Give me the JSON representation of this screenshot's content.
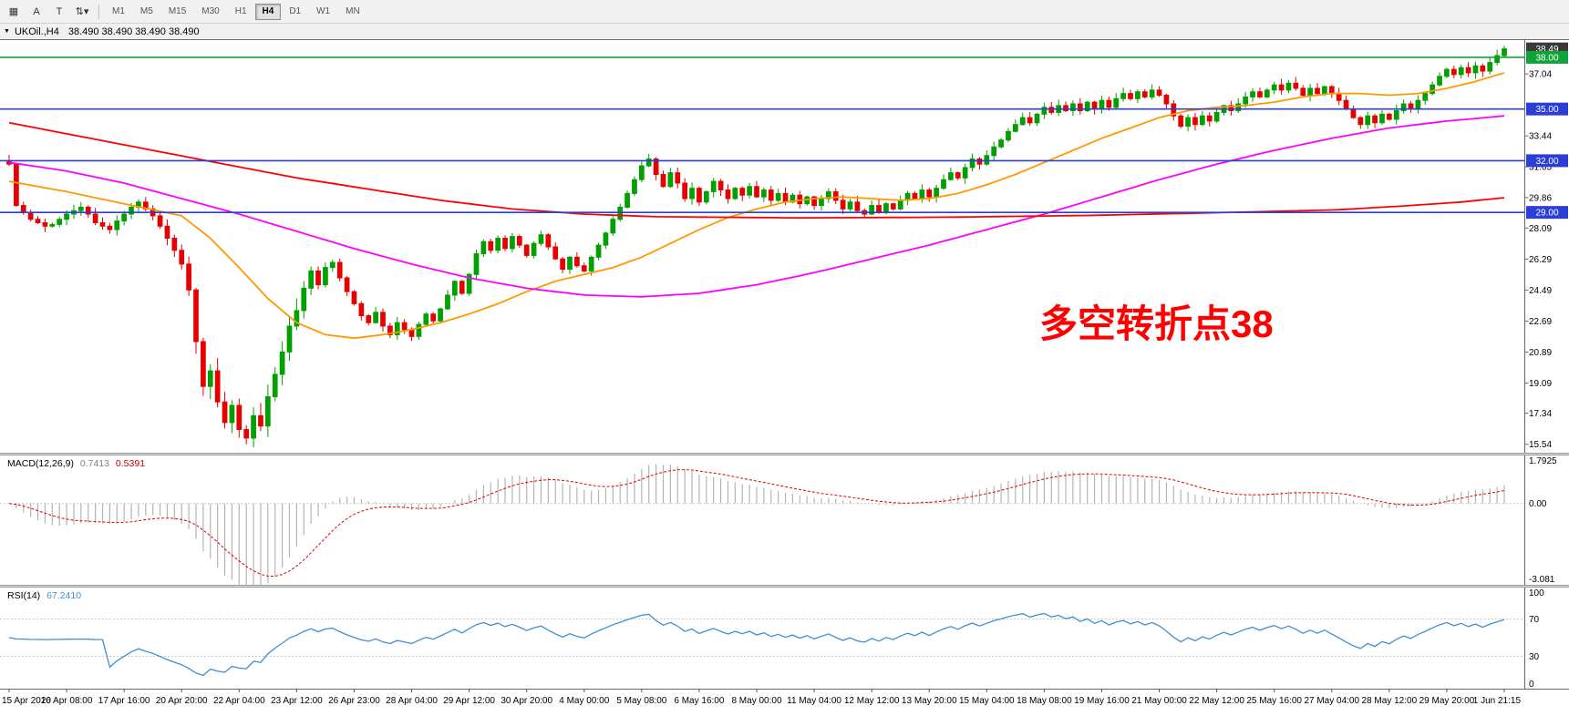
{
  "window": {
    "toolbar": {
      "icon_buttons": [
        {
          "name": "chart-grid-icon",
          "glyph": "▦"
        },
        {
          "name": "cursor-a-icon",
          "glyph": "A"
        },
        {
          "name": "text-tool-icon",
          "glyph": "T"
        },
        {
          "name": "arrows-tool-dropdown-icon",
          "glyph": "⇅▾"
        }
      ],
      "timeframes": [
        "M1",
        "M5",
        "M15",
        "M30",
        "H1",
        "H4",
        "D1",
        "W1",
        "MN"
      ],
      "active_timeframe": "H4"
    },
    "symbol_bar": {
      "collapse_glyph": "▼",
      "title": "UKOil.,H4",
      "ohlc": "38.490 38.490 38.490 38.490"
    }
  },
  "chart": {
    "annotation": {
      "text": "多空转折点38",
      "color": "#ff0000"
    },
    "colors": {
      "up": "#00a000",
      "down": "#e60000",
      "ma_fast": "#ff9900",
      "ma_mid": "#ff00ff",
      "ma_slow": "#ff0000",
      "hline_blue": "#2b3fd6",
      "hline_green": "#12a23a",
      "price_badge_bg": "#3a3a3a",
      "macd_hist": "#b4b4b4",
      "macd_signal": "#e00000",
      "rsi_line": "#3f8fd2"
    },
    "y_axis": {
      "range": [
        15.05,
        39.0
      ],
      "ticks": [
        "37.04",
        "33.44",
        "31.65",
        "29.86",
        "28.09",
        "26.29",
        "24.49",
        "22.69",
        "20.89",
        "19.09",
        "17.34",
        "15.54"
      ],
      "badges": [
        {
          "label": "38.49",
          "price": 38.49,
          "type": "current-price"
        },
        {
          "label": "38.00",
          "price": 38.0,
          "type": "green-line"
        },
        {
          "label": "35.00",
          "price": 35.0,
          "type": "blue-line"
        },
        {
          "label": "32.00",
          "price": 32.0,
          "type": "blue-line"
        },
        {
          "label": "29.00",
          "price": 29.0,
          "type": "blue-line"
        }
      ]
    },
    "h_lines": [
      {
        "price": 38.0,
        "color_key": "hline_green"
      },
      {
        "price": 35.0,
        "color_key": "hline_blue"
      },
      {
        "price": 32.0,
        "color_key": "hline_blue"
      },
      {
        "price": 29.0,
        "color_key": "hline_blue"
      }
    ],
    "x_axis": {
      "labels": [
        {
          "bar": 0,
          "label": "15 Apr 2020"
        },
        {
          "bar": 8,
          "label": "16 Apr 08:00"
        },
        {
          "bar": 16,
          "label": "17 Apr 16:00"
        },
        {
          "bar": 24,
          "label": "20 Apr 20:00"
        },
        {
          "bar": 32,
          "label": "22 Apr 04:00"
        },
        {
          "bar": 40,
          "label": "23 Apr 12:00"
        },
        {
          "bar": 48,
          "label": "26 Apr 23:00"
        },
        {
          "bar": 56,
          "label": "28 Apr 04:00"
        },
        {
          "bar": 64,
          "label": "29 Apr 12:00"
        },
        {
          "bar": 72,
          "label": "30 Apr 20:00"
        },
        {
          "bar": 80,
          "label": "4 May 00:00"
        },
        {
          "bar": 88,
          "label": "5 May 08:00"
        },
        {
          "bar": 96,
          "label": "6 May 16:00"
        },
        {
          "bar": 104,
          "label": "8 May 00:00"
        },
        {
          "bar": 112,
          "label": "11 May 04:00"
        },
        {
          "bar": 120,
          "label": "12 May 12:00"
        },
        {
          "bar": 128,
          "label": "13 May 20:00"
        },
        {
          "bar": 136,
          "label": "15 May 04:00"
        },
        {
          "bar": 144,
          "label": "18 May 08:00"
        },
        {
          "bar": 152,
          "label": "19 May 16:00"
        },
        {
          "bar": 160,
          "label": "21 May 00:00"
        },
        {
          "bar": 168,
          "label": "22 May 12:00"
        },
        {
          "bar": 176,
          "label": "25 May 16:00"
        },
        {
          "bar": 184,
          "label": "27 May 04:00"
        },
        {
          "bar": 192,
          "label": "28 May 12:00"
        },
        {
          "bar": 200,
          "label": "29 May 20:00"
        },
        {
          "bar": 208,
          "label": "1 Jun 21:15"
        }
      ]
    },
    "chart_data": {
      "type": "candlestick",
      "symbol": "UKOil",
      "timeframe": "H4",
      "bars": 209,
      "open_first": 32.0,
      "session_low": 15.54,
      "last_price": 38.49,
      "closes": [
        31.8,
        29.4,
        29.0,
        28.6,
        28.4,
        28.2,
        28.3,
        28.6,
        28.9,
        29.1,
        29.3,
        28.9,
        28.4,
        28.2,
        28.0,
        28.5,
        28.9,
        29.3,
        29.6,
        29.2,
        28.8,
        28.2,
        27.5,
        26.8,
        26.0,
        24.5,
        21.5,
        18.9,
        19.8,
        18.0,
        16.8,
        17.8,
        16.4,
        15.9,
        17.2,
        16.6,
        18.3,
        19.6,
        20.9,
        22.4,
        23.3,
        24.6,
        25.6,
        24.8,
        25.8,
        26.1,
        25.2,
        24.4,
        23.7,
        23.0,
        22.6,
        23.2,
        22.4,
        21.9,
        22.6,
        22.2,
        21.8,
        22.5,
        23.1,
        22.7,
        23.4,
        24.2,
        25.0,
        24.3,
        25.4,
        26.6,
        27.3,
        26.8,
        27.5,
        26.9,
        27.6,
        27.1,
        26.5,
        27.2,
        27.7,
        27.0,
        26.3,
        25.7,
        26.4,
        25.9,
        25.6,
        26.4,
        27.1,
        27.8,
        28.6,
        29.3,
        30.1,
        30.9,
        31.7,
        32.1,
        31.2,
        30.5,
        31.3,
        30.7,
        29.8,
        30.4,
        29.6,
        30.2,
        30.8,
        30.3,
        29.8,
        30.4,
        30.0,
        30.5,
        29.9,
        30.3,
        29.7,
        30.1,
        29.6,
        30.0,
        29.5,
        29.9,
        29.4,
        29.8,
        30.2,
        29.7,
        29.2,
        29.6,
        29.1,
        28.9,
        29.4,
        29.0,
        29.5,
        29.2,
        29.7,
        30.1,
        29.8,
        30.3,
        29.9,
        30.4,
        30.9,
        31.3,
        31.0,
        31.6,
        32.1,
        31.8,
        32.3,
        32.8,
        33.2,
        33.7,
        34.1,
        34.5,
        34.2,
        34.7,
        35.1,
        34.8,
        35.2,
        34.9,
        35.3,
        34.9,
        35.4,
        35.0,
        35.5,
        35.1,
        35.6,
        35.9,
        35.6,
        36.0,
        35.7,
        36.1,
        35.8,
        35.3,
        34.6,
        34.0,
        34.5,
        34.1,
        34.6,
        34.3,
        34.8,
        35.2,
        34.9,
        35.3,
        35.7,
        36.0,
        35.7,
        36.1,
        36.4,
        36.1,
        36.5,
        36.2,
        35.8,
        36.2,
        35.9,
        36.3,
        35.9,
        35.5,
        35.0,
        34.5,
        34.1,
        34.6,
        34.2,
        34.7,
        34.4,
        34.9,
        35.3,
        35.0,
        35.5,
        35.9,
        36.4,
        36.9,
        37.3,
        37.0,
        37.4,
        37.1,
        37.5,
        37.2,
        37.7,
        38.1,
        38.49
      ],
      "moving_averages": [
        {
          "name": "ma-fast-orange",
          "color_key": "ma_fast",
          "anchors": [
            [
              0,
              30.8
            ],
            [
              8,
              30.2
            ],
            [
              16,
              29.5
            ],
            [
              24,
              28.8
            ],
            [
              28,
              27.5
            ],
            [
              32,
              25.8
            ],
            [
              36,
              24.0
            ],
            [
              40,
              22.6
            ],
            [
              44,
              21.9
            ],
            [
              48,
              21.7
            ],
            [
              52,
              21.9
            ],
            [
              56,
              22.2
            ],
            [
              60,
              22.6
            ],
            [
              64,
              23.1
            ],
            [
              68,
              23.7
            ],
            [
              72,
              24.4
            ],
            [
              76,
              25.0
            ],
            [
              80,
              25.4
            ],
            [
              84,
              25.8
            ],
            [
              88,
              26.4
            ],
            [
              92,
              27.2
            ],
            [
              96,
              28.0
            ],
            [
              100,
              28.7
            ],
            [
              104,
              29.2
            ],
            [
              108,
              29.6
            ],
            [
              112,
              29.8
            ],
            [
              116,
              29.9
            ],
            [
              120,
              29.8
            ],
            [
              124,
              29.7
            ],
            [
              128,
              29.8
            ],
            [
              132,
              30.1
            ],
            [
              136,
              30.6
            ],
            [
              140,
              31.2
            ],
            [
              144,
              31.9
            ],
            [
              148,
              32.6
            ],
            [
              152,
              33.3
            ],
            [
              156,
              33.9
            ],
            [
              160,
              34.5
            ],
            [
              164,
              34.9
            ],
            [
              168,
              35.1
            ],
            [
              172,
              35.2
            ],
            [
              176,
              35.4
            ],
            [
              180,
              35.7
            ],
            [
              184,
              35.9
            ],
            [
              188,
              35.9
            ],
            [
              192,
              35.8
            ],
            [
              196,
              35.9
            ],
            [
              200,
              36.2
            ],
            [
              204,
              36.6
            ],
            [
              208,
              37.1
            ]
          ]
        },
        {
          "name": "ma-mid-magenta",
          "color_key": "ma_mid",
          "anchors": [
            [
              0,
              31.9
            ],
            [
              8,
              31.4
            ],
            [
              16,
              30.7
            ],
            [
              24,
              29.8
            ],
            [
              32,
              28.9
            ],
            [
              40,
              27.9
            ],
            [
              48,
              26.9
            ],
            [
              56,
              26.0
            ],
            [
              64,
              25.2
            ],
            [
              72,
              24.6
            ],
            [
              80,
              24.2
            ],
            [
              88,
              24.1
            ],
            [
              96,
              24.3
            ],
            [
              104,
              24.8
            ],
            [
              112,
              25.5
            ],
            [
              120,
              26.3
            ],
            [
              128,
              27.1
            ],
            [
              136,
              28.0
            ],
            [
              144,
              28.9
            ],
            [
              152,
              29.9
            ],
            [
              160,
              30.9
            ],
            [
              168,
              31.8
            ],
            [
              176,
              32.6
            ],
            [
              184,
              33.3
            ],
            [
              192,
              33.9
            ],
            [
              200,
              34.3
            ],
            [
              208,
              34.6
            ]
          ]
        },
        {
          "name": "ma-slow-red",
          "color_key": "ma_slow",
          "anchors": [
            [
              0,
              34.2
            ],
            [
              20,
              32.6
            ],
            [
              40,
              31.0
            ],
            [
              60,
              29.7
            ],
            [
              70,
              29.2
            ],
            [
              80,
              28.9
            ],
            [
              90,
              28.75
            ],
            [
              110,
              28.68
            ],
            [
              130,
              28.72
            ],
            [
              150,
              28.82
            ],
            [
              170,
              29.0
            ],
            [
              185,
              29.15
            ],
            [
              195,
              29.4
            ],
            [
              202,
              29.6
            ],
            [
              208,
              29.85
            ]
          ]
        }
      ]
    }
  },
  "macd": {
    "name": "MACD(12,26,9)",
    "value_main": "0.7413",
    "value_signal": "0.5391",
    "params": {
      "fast": 12,
      "slow": 26,
      "signal": 9
    },
    "scale": {
      "top_label": "1.7925",
      "zero_label": "0.00",
      "bottom_label": "-3.081"
    },
    "range": [
      -3.3,
      1.95
    ]
  },
  "rsi": {
    "name": "RSI(14)",
    "value": "67.2410",
    "period": 14,
    "levels": [
      70,
      30
    ],
    "scale_labels": [
      "100",
      "70",
      "30",
      "0"
    ],
    "range": [
      0,
      100
    ]
  }
}
